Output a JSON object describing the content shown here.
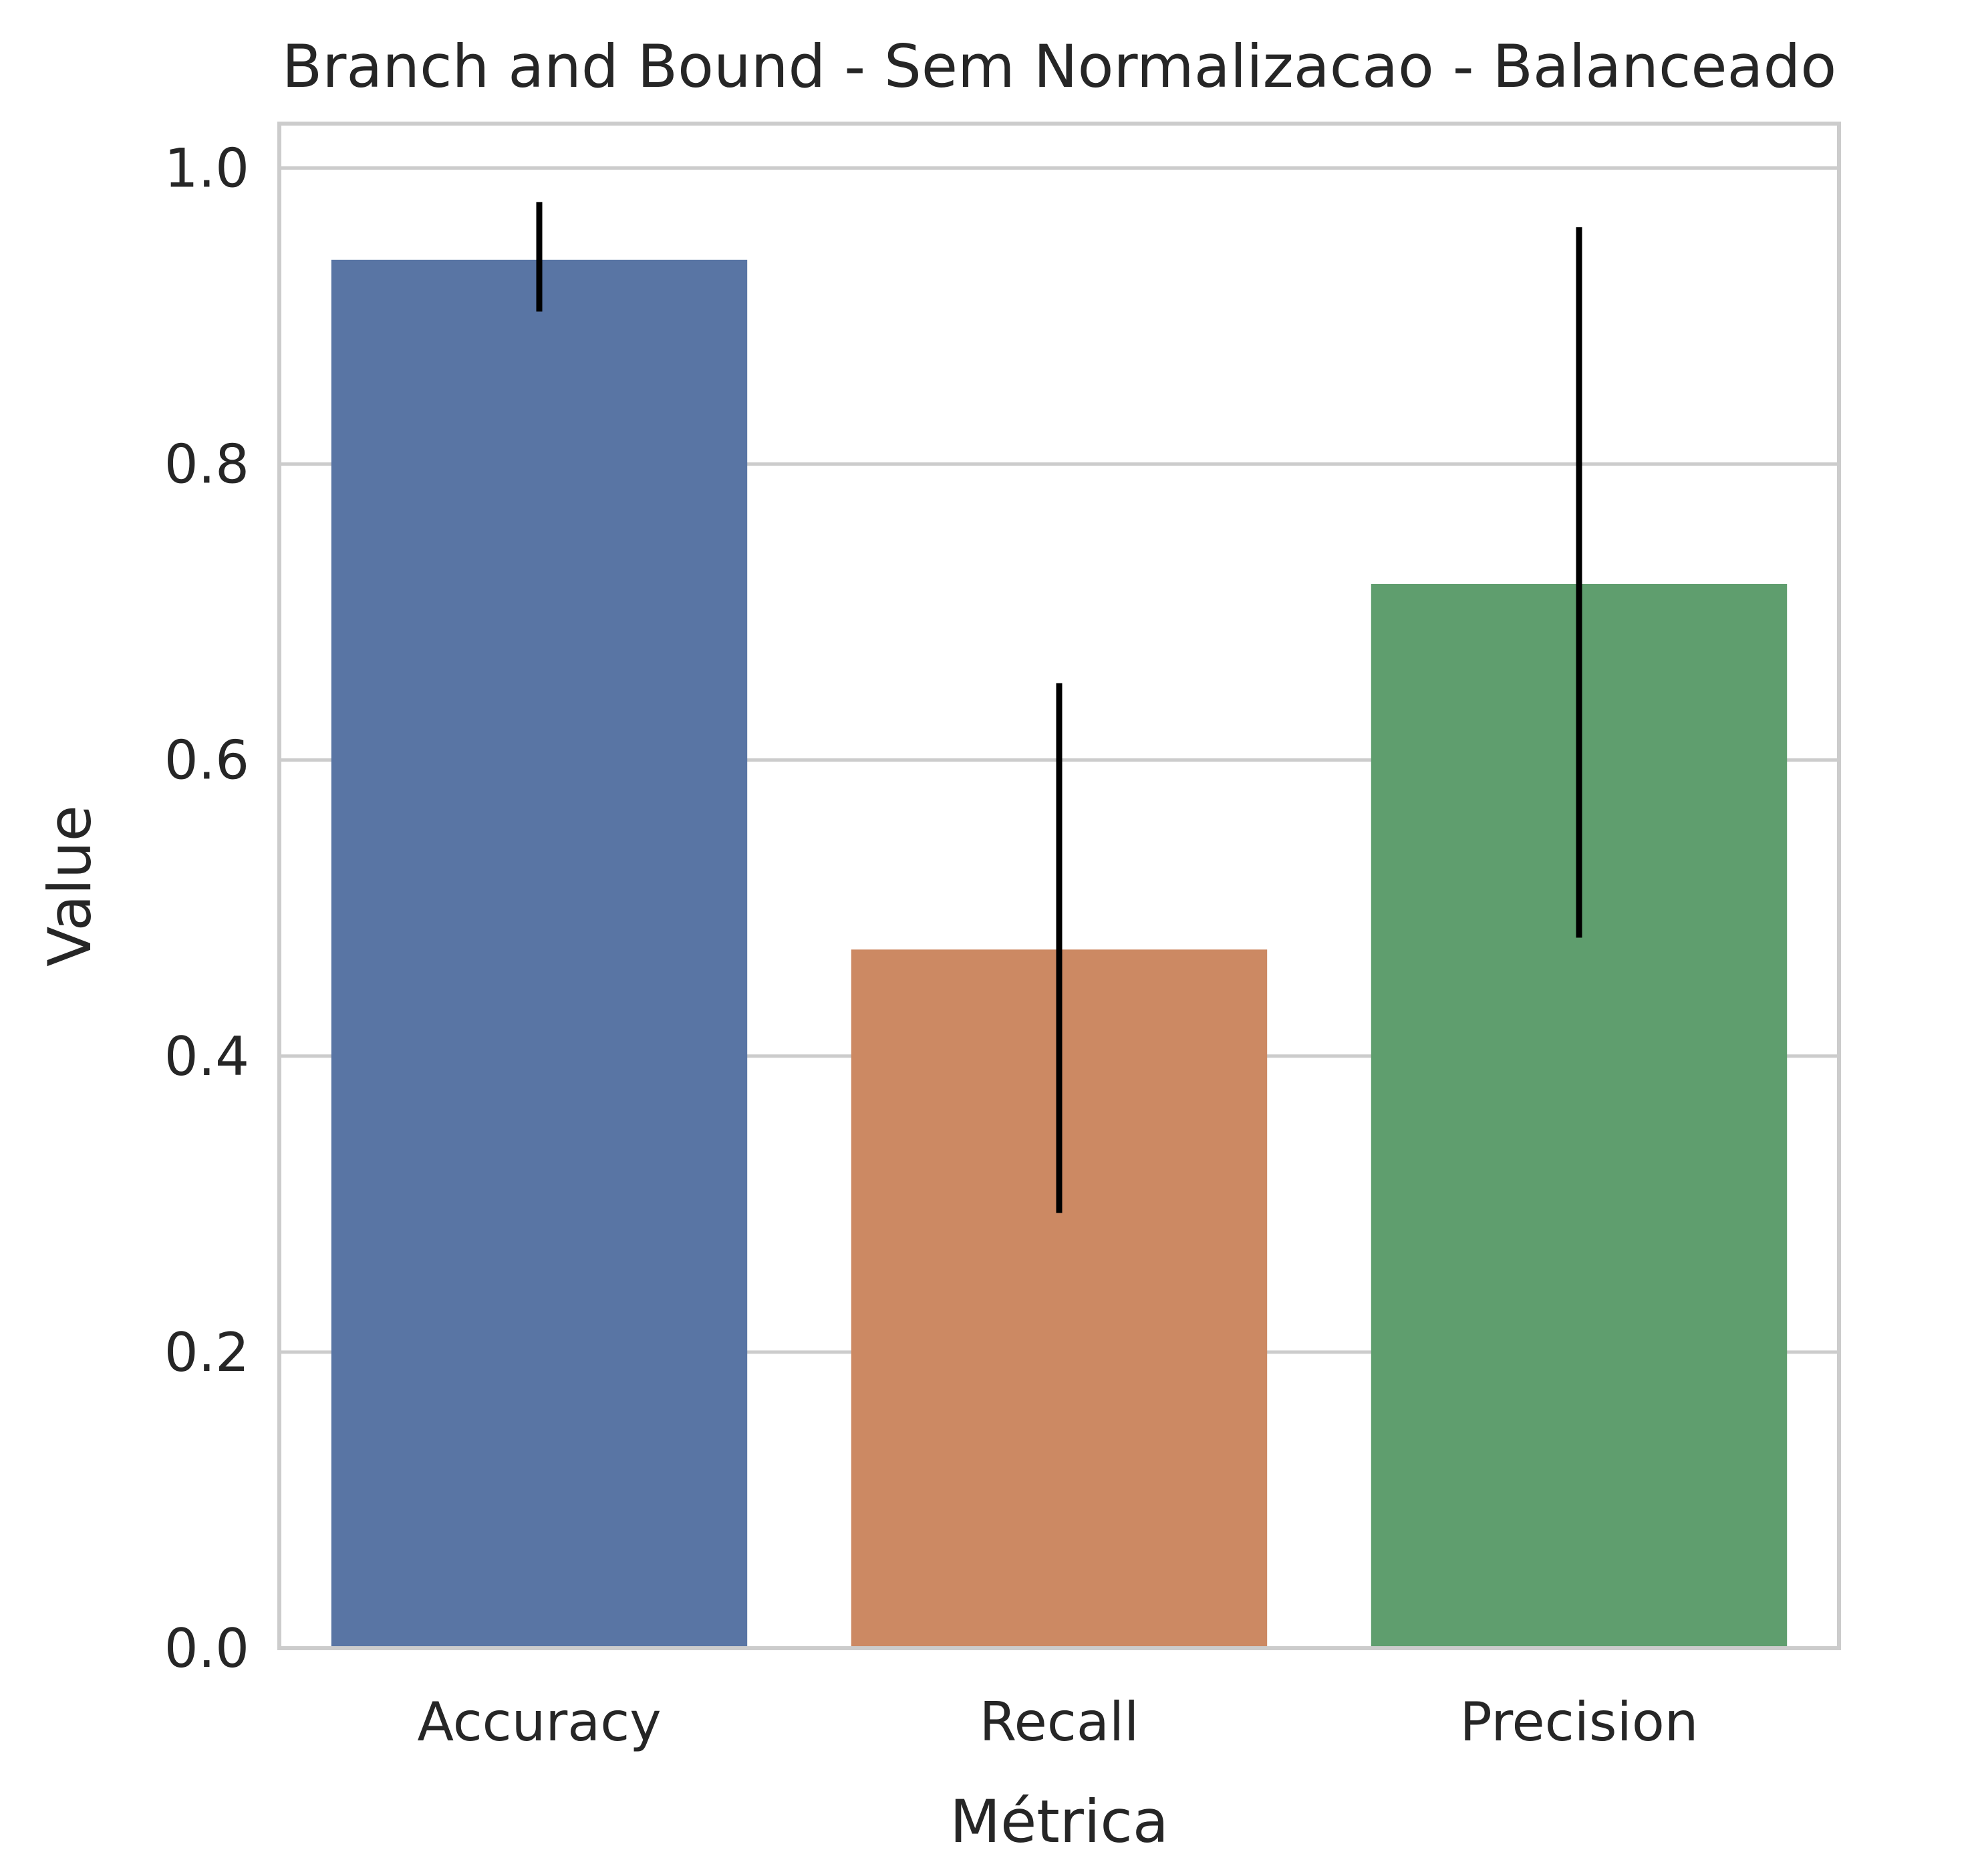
{
  "chart_data": {
    "type": "bar",
    "title": "Branch and Bound - Sem Normalizacao - Balanceado",
    "xlabel": "Métrica",
    "ylabel": "Value",
    "categories": [
      "Accuracy",
      "Recall",
      "Precision"
    ],
    "values": [
      0.938,
      0.472,
      0.719
    ],
    "error_bars": [
      {
        "low": 0.903,
        "high": 0.977
      },
      {
        "low": 0.294,
        "high": 0.652
      },
      {
        "low": 0.48,
        "high": 0.96
      }
    ],
    "colors": [
      "#5975a4",
      "#cc8963",
      "#5f9e6e"
    ],
    "error_color": "#000000",
    "ylim": [
      0,
      1.03
    ],
    "yticks": [
      0.0,
      0.2,
      0.4,
      0.6,
      0.8,
      1.0
    ],
    "ytick_labels": [
      "0.0",
      "0.2",
      "0.4",
      "0.6",
      "0.8",
      "1.0"
    ],
    "grid": "horizontal",
    "grid_color": "#cccccc",
    "legend": "none"
  }
}
